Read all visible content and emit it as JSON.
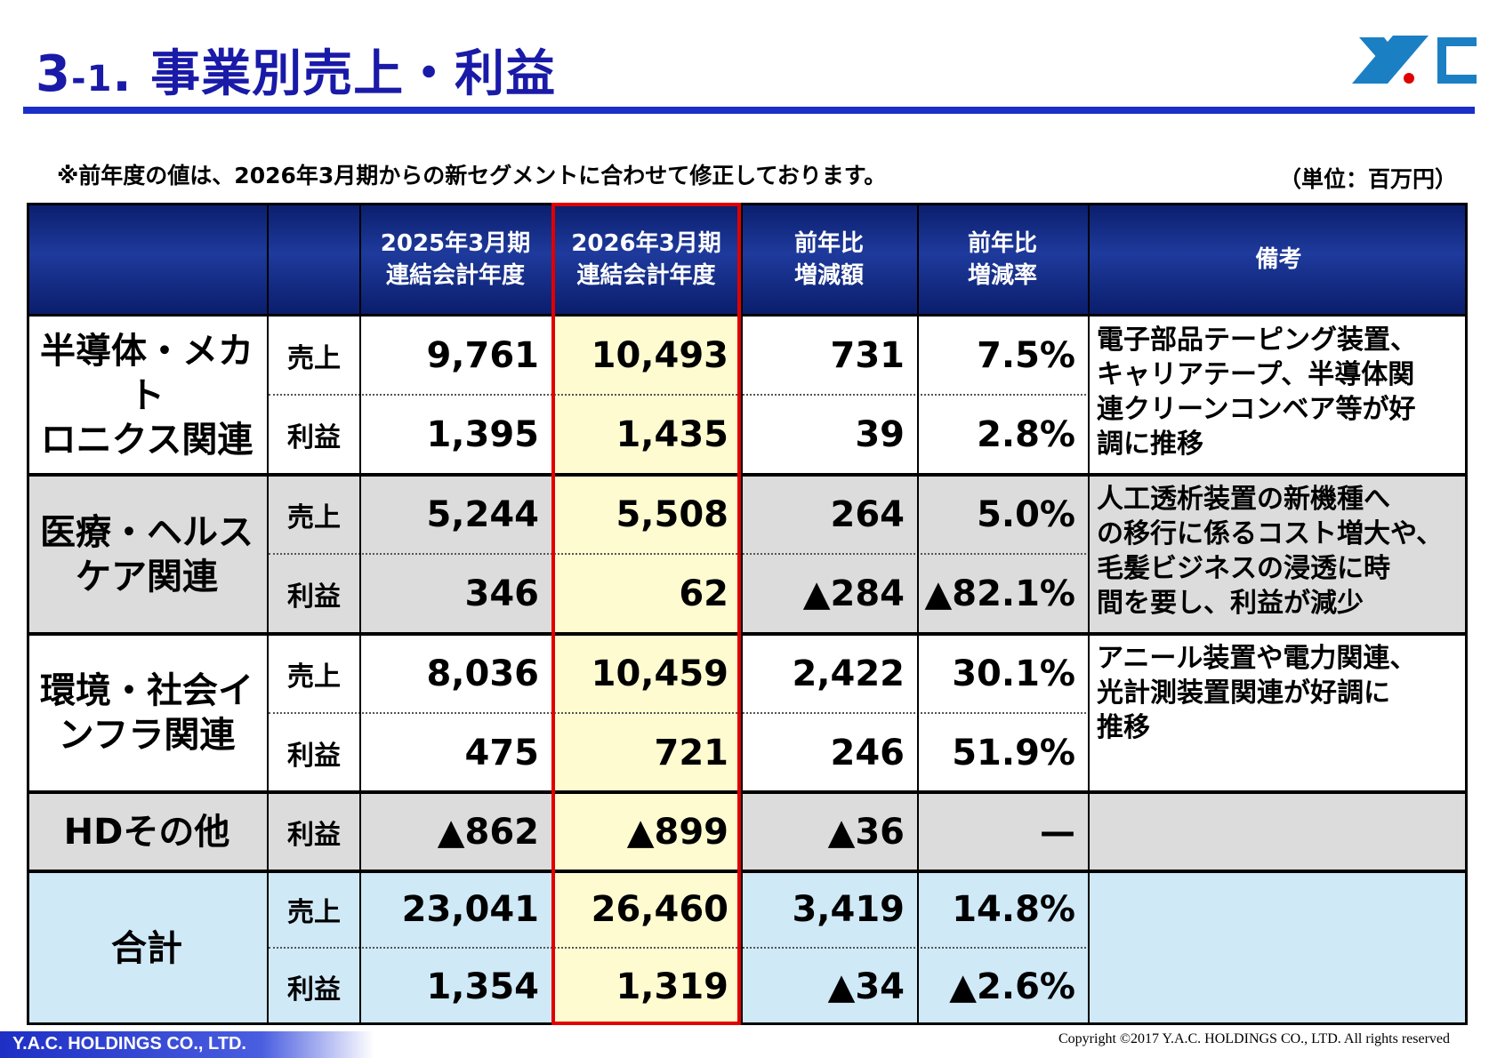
{
  "header": {
    "title_num": "3",
    "title_sub": "-1",
    "title_text": ". 事業別売上・利益"
  },
  "note": "※前年度の値は、2026年3月期からの新セグメントに合わせて修正しております。",
  "unit": "（単位：百万円）",
  "table": {
    "columns": [
      "",
      "",
      "2025年3月期\n連結会計年度",
      "2026年3月期\n連結会計年度",
      "前年比\n増減額",
      "前年比\n増減率",
      "備考"
    ],
    "segments": [
      {
        "name": "半導体・メカト\nロニクス関連",
        "rows": [
          {
            "kind": "売上",
            "fy2025": "9,761",
            "fy2026": "10,493",
            "diff": "731",
            "rate": "7.5%"
          },
          {
            "kind": "利益",
            "fy2025": "1,395",
            "fy2026": "1,435",
            "diff": "39",
            "rate": "2.8%"
          }
        ],
        "remarks": "電子部品テーピング装置、\nキャリアテープ、半導体関\n連クリーンコンベア等が好\n調に推移"
      },
      {
        "name": "医療・ヘルス\nケア関連",
        "rows": [
          {
            "kind": "売上",
            "fy2025": "5,244",
            "fy2026": "5,508",
            "diff": "264",
            "rate": "5.0%"
          },
          {
            "kind": "利益",
            "fy2025": "346",
            "fy2026": "62",
            "diff": "▲284",
            "rate": "▲82.1%"
          }
        ],
        "remarks": "人工透析装置の新機種へ\nの移行に係るコスト増大や、\n毛髪ビジネスの浸透に時\n間を要し、利益が減少"
      },
      {
        "name": "環境・社会イ\nンフラ関連",
        "rows": [
          {
            "kind": "売上",
            "fy2025": "8,036",
            "fy2026": "10,459",
            "diff": "2,422",
            "rate": "30.1%"
          },
          {
            "kind": "利益",
            "fy2025": "475",
            "fy2026": "721",
            "diff": "246",
            "rate": "51.9%"
          }
        ],
        "remarks": "アニール装置や電力関連、\n光計測装置関連が好調に\n推移"
      },
      {
        "name": "HDその他",
        "rows": [
          {
            "kind": "利益",
            "fy2025": "▲862",
            "fy2026": "▲899",
            "diff": "▲36",
            "rate": "—"
          }
        ],
        "remarks": ""
      },
      {
        "name": "合計",
        "rows": [
          {
            "kind": "売上",
            "fy2025": "23,041",
            "fy2026": "26,460",
            "diff": "3,419",
            "rate": "14.8%"
          },
          {
            "kind": "利益",
            "fy2025": "1,354",
            "fy2026": "1,319",
            "diff": "▲34",
            "rate": "▲2.6%"
          }
        ],
        "remarks": ""
      }
    ]
  },
  "footer": {
    "company": "Y.A.C. HOLDINGS CO., LTD.",
    "copyright": "Copyright ©2017 Y.A.C. HOLDINGS CO., LTD.  All rights reserved"
  },
  "colors": {
    "title": "#1a1aa8",
    "rule": "#1b2ec9",
    "header_bg": "#0a1d6b",
    "highlight_border": "#e00000",
    "highlight_fill": "#fffbd0",
    "gray_row": "#dcdcdc",
    "total_row": "#cfe9f7"
  }
}
